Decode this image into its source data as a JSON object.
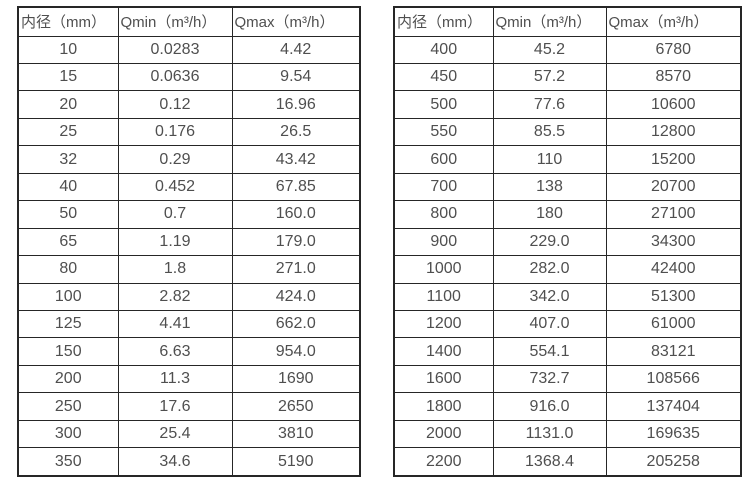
{
  "colors": {
    "border": "#262626",
    "text": "#4f4f4f",
    "background": "#ffffff"
  },
  "tables": [
    {
      "name": "flow-table-small-diameters",
      "headers": [
        "内径（mm）",
        "Qmin（m³/h）",
        "Qmax（m³/h）"
      ],
      "rows": [
        [
          "10",
          "0.0283",
          "4.42"
        ],
        [
          "15",
          "0.0636",
          "9.54"
        ],
        [
          "20",
          "0.12",
          "16.96"
        ],
        [
          "25",
          "0.176",
          "26.5"
        ],
        [
          "32",
          "0.29",
          "43.42"
        ],
        [
          "40",
          "0.452",
          "67.85"
        ],
        [
          "50",
          "0.7",
          "160.0"
        ],
        [
          "65",
          "1.19",
          "179.0"
        ],
        [
          "80",
          "1.8",
          "271.0"
        ],
        [
          "100",
          "2.82",
          "424.0"
        ],
        [
          "125",
          "4.41",
          "662.0"
        ],
        [
          "150",
          "6.63",
          "954.0"
        ],
        [
          "200",
          "11.3",
          "1690"
        ],
        [
          "250",
          "17.6",
          "2650"
        ],
        [
          "300",
          "25.4",
          "3810"
        ],
        [
          "350",
          "34.6",
          "5190"
        ]
      ]
    },
    {
      "name": "flow-table-large-diameters",
      "headers": [
        "内径（mm）",
        "Qmin（m³/h）",
        "Qmax（m³/h）"
      ],
      "rows": [
        [
          "400",
          "45.2",
          "6780"
        ],
        [
          "450",
          "57.2",
          "8570"
        ],
        [
          "500",
          "77.6",
          "10600"
        ],
        [
          "550",
          "85.5",
          "12800"
        ],
        [
          "600",
          "110",
          "15200"
        ],
        [
          "700",
          "138",
          "20700"
        ],
        [
          "800",
          "180",
          "27100"
        ],
        [
          "900",
          "229.0",
          "34300"
        ],
        [
          "1000",
          "282.0",
          "42400"
        ],
        [
          "1100",
          "342.0",
          "51300"
        ],
        [
          "1200",
          "407.0",
          "61000"
        ],
        [
          "1400",
          "554.1",
          "83121"
        ],
        [
          "1600",
          "732.7",
          "108566"
        ],
        [
          "1800",
          "916.0",
          "137404"
        ],
        [
          "2000",
          "1131.0",
          "169635"
        ],
        [
          "2200",
          "1368.4",
          "205258"
        ]
      ]
    }
  ]
}
